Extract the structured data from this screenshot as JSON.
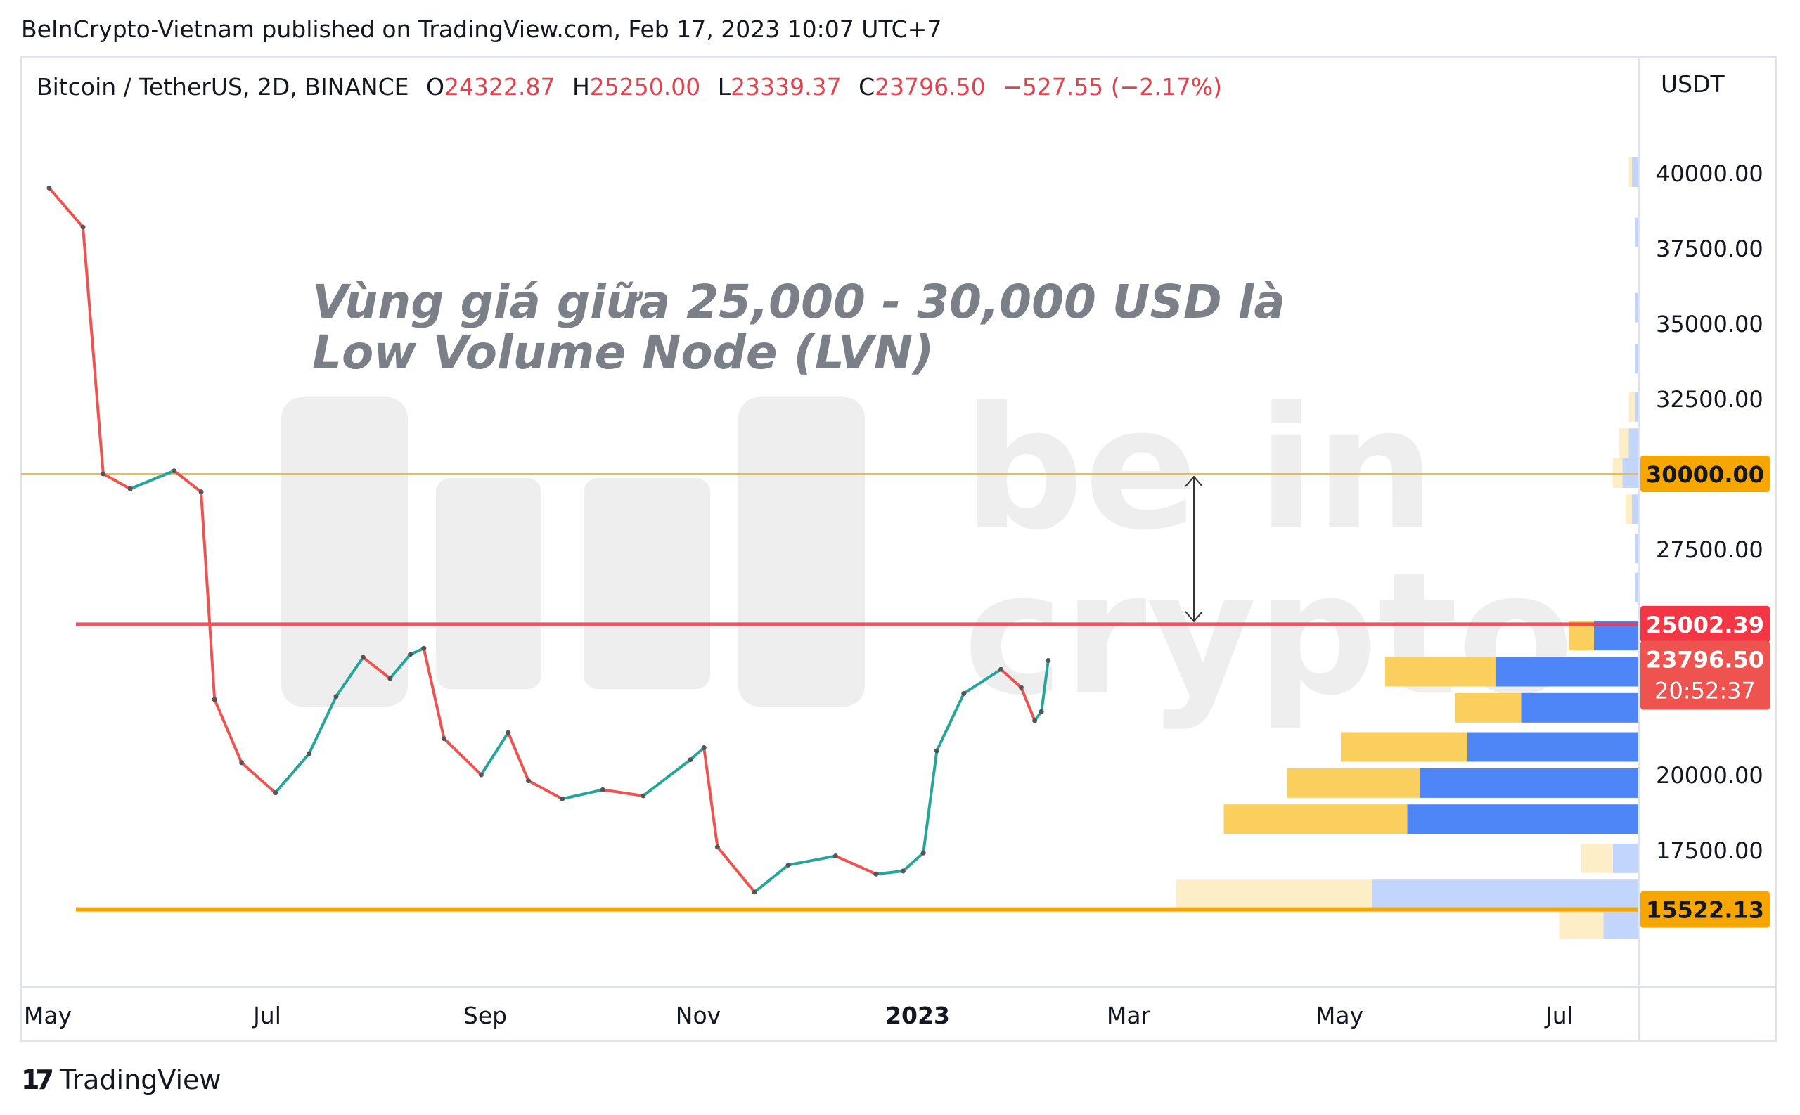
{
  "published_by": "BeInCrypto-Vietnam published on TradingView.com, Feb 17, 2023 10:07 UTC+7",
  "symbol": {
    "name": "Bitcoin / TetherUS, 2D, BINANCE",
    "open_label": "O",
    "open": "24322.87",
    "high_label": "H",
    "high": "25250.00",
    "low_label": "L",
    "low": "23339.37",
    "close_label": "C",
    "close": "23796.50",
    "change": "−527.55 (−2.17%)"
  },
  "currency": "USDT",
  "brand": "TradingView",
  "watermark": "be in crypto",
  "colors": {
    "up": "#26a69a",
    "down": "#ef5350",
    "resistance": "#f23645",
    "support": "#f7a600",
    "upper_line": "#f5b942",
    "vp_up": "#4f86f7",
    "vp_down": "#fbcf5e"
  },
  "chart_data": {
    "type": "line",
    "annotation": [
      "Vùng giá giữa 25,000 - 30,000 USD là",
      "Low Volume Node (LVN)"
    ],
    "y_ticks": [
      40000,
      37500,
      35000,
      32500,
      27500,
      20000,
      17500
    ],
    "y_tick_labels": [
      "40000.00",
      "37500.00",
      "35000.00",
      "32500.00",
      "27500.00",
      "20000.00",
      "17500.00"
    ],
    "ylim": [
      12900,
      43300
    ],
    "x_ticks": [
      {
        "label": "May",
        "bold": false
      },
      {
        "label": "Jul",
        "bold": false
      },
      {
        "label": "Sep",
        "bold": false
      },
      {
        "label": "Nov",
        "bold": false
      },
      {
        "label": "2023",
        "bold": true
      },
      {
        "label": "Mar",
        "bold": false
      },
      {
        "label": "May",
        "bold": false
      },
      {
        "label": "Jul",
        "bold": false
      }
    ],
    "horizontal_levels": [
      {
        "value": 30000,
        "label": "30000.00",
        "color": "#f5b942",
        "tag_color": "#f7a600"
      },
      {
        "value": 25002.39,
        "label": "25002.39",
        "color": "#f23645",
        "tag_color": "#f23645"
      },
      {
        "value": 15522.13,
        "label": "15522.13",
        "color": "#f7a600",
        "tag_color": "#f7a600"
      }
    ],
    "price_tag": {
      "value": 23796.5,
      "label": "23796.50",
      "countdown": "20:52:37",
      "color": "#ef5350"
    },
    "series": [
      {
        "name": "BTC/USDT 2D close",
        "dates": [
          "2022-04-26",
          "2022-05-06",
          "2022-05-12",
          "2022-05-20",
          "2022-06-02",
          "2022-06-10",
          "2022-06-14",
          "2022-06-22",
          "2022-07-02",
          "2022-07-12",
          "2022-07-20",
          "2022-07-28",
          "2022-08-05",
          "2022-08-11",
          "2022-08-15",
          "2022-08-21",
          "2022-09-01",
          "2022-09-09",
          "2022-09-15",
          "2022-09-25",
          "2022-10-07",
          "2022-10-19",
          "2022-11-02",
          "2022-11-06",
          "2022-11-10",
          "2022-11-21",
          "2022-12-01",
          "2022-12-15",
          "2022-12-27",
          "2023-01-04",
          "2023-01-10",
          "2023-01-14",
          "2023-01-22",
          "2023-02-02",
          "2023-02-08",
          "2023-02-12",
          "2023-02-14",
          "2023-02-16"
        ],
        "values": [
          39500,
          38200,
          30000,
          29500,
          30100,
          29400,
          22500,
          20400,
          19400,
          20700,
          22600,
          23900,
          23200,
          24000,
          24200,
          21200,
          20000,
          21400,
          19800,
          19200,
          19500,
          19300,
          20500,
          20900,
          17600,
          16100,
          17000,
          17300,
          16700,
          16800,
          17400,
          20800,
          22700,
          23500,
          22900,
          21800,
          22100,
          23796
        ]
      }
    ],
    "volume_profile": [
      {
        "price": 40000,
        "up": 0.01,
        "down": 0.02,
        "faded": true
      },
      {
        "price": 38000,
        "up": 0.0,
        "down": 0.01,
        "faded": true
      },
      {
        "price": 35500,
        "up": 0.0,
        "down": 0.01,
        "faded": true
      },
      {
        "price": 33800,
        "up": 0.0,
        "down": 0.01,
        "faded": true
      },
      {
        "price": 32200,
        "up": 0.02,
        "down": 0.01,
        "faded": true
      },
      {
        "price": 31000,
        "up": 0.03,
        "down": 0.03,
        "faded": true
      },
      {
        "price": 30000,
        "up": 0.03,
        "down": 0.05,
        "faded": true
      },
      {
        "price": 28800,
        "up": 0.02,
        "down": 0.02,
        "faded": true
      },
      {
        "price": 27500,
        "up": 0.0,
        "down": 0.01,
        "faded": true
      },
      {
        "price": 26200,
        "up": 0.0,
        "down": 0.01,
        "faded": true
      },
      {
        "price": 24600,
        "up": 0.08,
        "down": 0.14,
        "faded": false
      },
      {
        "price": 23400,
        "up": 0.35,
        "down": 0.45,
        "faded": false
      },
      {
        "price": 22200,
        "up": 0.21,
        "down": 0.37,
        "faded": false
      },
      {
        "price": 20900,
        "up": 0.4,
        "down": 0.54,
        "faded": false
      },
      {
        "price": 19700,
        "up": 0.42,
        "down": 0.69,
        "faded": false
      },
      {
        "price": 18500,
        "up": 0.58,
        "down": 0.73,
        "faded": false
      },
      {
        "price": 17200,
        "up": 0.1,
        "down": 0.08,
        "faded": true
      },
      {
        "price": 16000,
        "up": 0.62,
        "down": 0.84,
        "faded": true
      },
      {
        "price": 15000,
        "up": 0.14,
        "down": 0.11,
        "faded": true
      }
    ]
  }
}
